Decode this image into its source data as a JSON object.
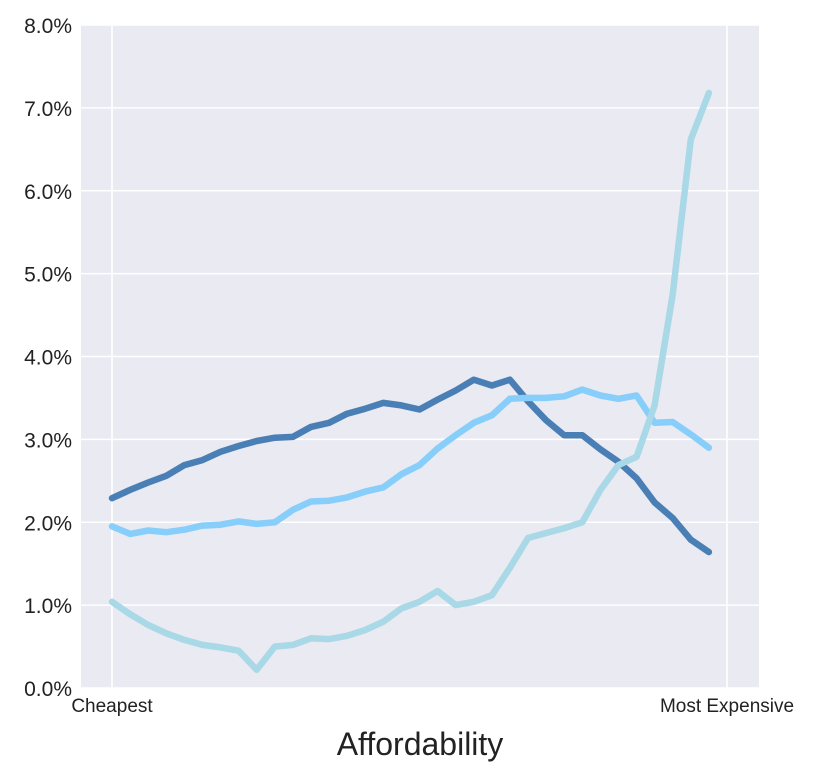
{
  "chart_data": {
    "type": "line",
    "title": "",
    "xlabel": "Affordability",
    "ylabel": "",
    "x_range": [
      0,
      34
    ],
    "x_tick_labels": [
      {
        "x": 0,
        "label": "Cheapest"
      },
      {
        "x": 34,
        "label": "Most Expensive"
      }
    ],
    "ylim": [
      0,
      8
    ],
    "y_ticks": [
      0,
      1,
      2,
      3,
      4,
      5,
      6,
      7,
      8
    ],
    "y_tick_labels": [
      "0.0%",
      "1.0%",
      "2.0%",
      "3.0%",
      "4.0%",
      "5.0%",
      "6.0%",
      "7.0%",
      "8.0%"
    ],
    "grid": true,
    "legend": false,
    "background": "#e9eaf2",
    "grid_color": "#ffffff",
    "series": [
      {
        "color": "#4a7fb5",
        "values": [
          2.29,
          2.39,
          2.48,
          2.56,
          2.69,
          2.75,
          2.85,
          2.92,
          2.98,
          3.02,
          3.03,
          3.15,
          3.2,
          3.31,
          3.37,
          3.44,
          3.41,
          3.36,
          3.48,
          3.59,
          3.72,
          3.65,
          3.72,
          3.46,
          3.23,
          3.05,
          3.05,
          2.88,
          2.73,
          2.53,
          2.24,
          2.05,
          1.79,
          1.64
        ]
      },
      {
        "color": "#87cefa",
        "values": [
          1.95,
          1.86,
          1.9,
          1.88,
          1.91,
          1.96,
          1.97,
          2.01,
          1.98,
          2.0,
          2.15,
          2.25,
          2.26,
          2.3,
          2.37,
          2.42,
          2.58,
          2.69,
          2.89,
          3.05,
          3.2,
          3.29,
          3.49,
          3.5,
          3.5,
          3.52,
          3.6,
          3.53,
          3.49,
          3.53,
          3.2,
          3.21,
          3.06,
          2.9
        ]
      },
      {
        "color": "#a9d8e6",
        "values": [
          1.04,
          0.89,
          0.76,
          0.66,
          0.58,
          0.52,
          0.49,
          0.45,
          0.22,
          0.5,
          0.52,
          0.6,
          0.59,
          0.63,
          0.7,
          0.8,
          0.96,
          1.04,
          1.17,
          1.0,
          1.04,
          1.12,
          1.45,
          1.81,
          1.87,
          1.93,
          2.0,
          2.39,
          2.69,
          2.79,
          3.41,
          4.75,
          6.62,
          7.18
        ]
      }
    ]
  }
}
